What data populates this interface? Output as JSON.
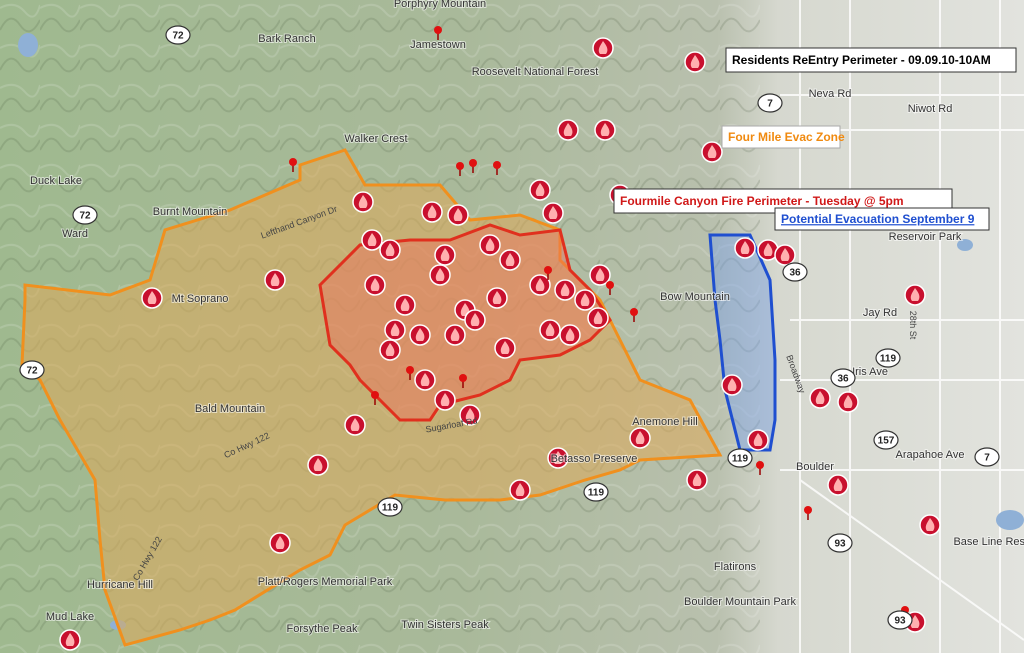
{
  "callouts": [
    "Residents ReEntry Perimeter - 09.09.10-10AM",
    "Four Mile Evac Zone",
    "Fourmile Canyon Fire Perimeter - Tuesday @ 5pm",
    "Potential Evacuation September 9"
  ],
  "places": [
    "Porphyry Mountain",
    "Jamestown",
    "Bark Ranch",
    "Roosevelt National Forest",
    "Walker Crest",
    "Burnt Mountain",
    "Ward",
    "Duck Lake",
    "Mt Soprano",
    "Bald Mountain",
    "Anemone Hill",
    "Betasso Preserve",
    "Boulder",
    "Neva Rd",
    "Niwot Rd",
    "Jay Rd",
    "Iris Ave",
    "Arapahoe Ave",
    "Reservoir Park",
    "Base Line Reservoir",
    "Flatirons",
    "Boulder Mountain Park",
    "Platt/Rogers Memorial Park",
    "Forsythe Peak",
    "Twin Sisters Peak",
    "Hurricane Hill",
    "Mud Lake",
    "Bow Mountain"
  ],
  "roads": [
    "Co Hwy 122",
    "Sugarloaf Rd",
    "Lefthand Canyon Dr",
    "28th St",
    "Broadway",
    "Co Hwy 122"
  ],
  "shields": [
    "72",
    "72",
    "72",
    "7",
    "7",
    "36",
    "36",
    "119",
    "119",
    "119",
    "119",
    "157",
    "93",
    "93"
  ]
}
